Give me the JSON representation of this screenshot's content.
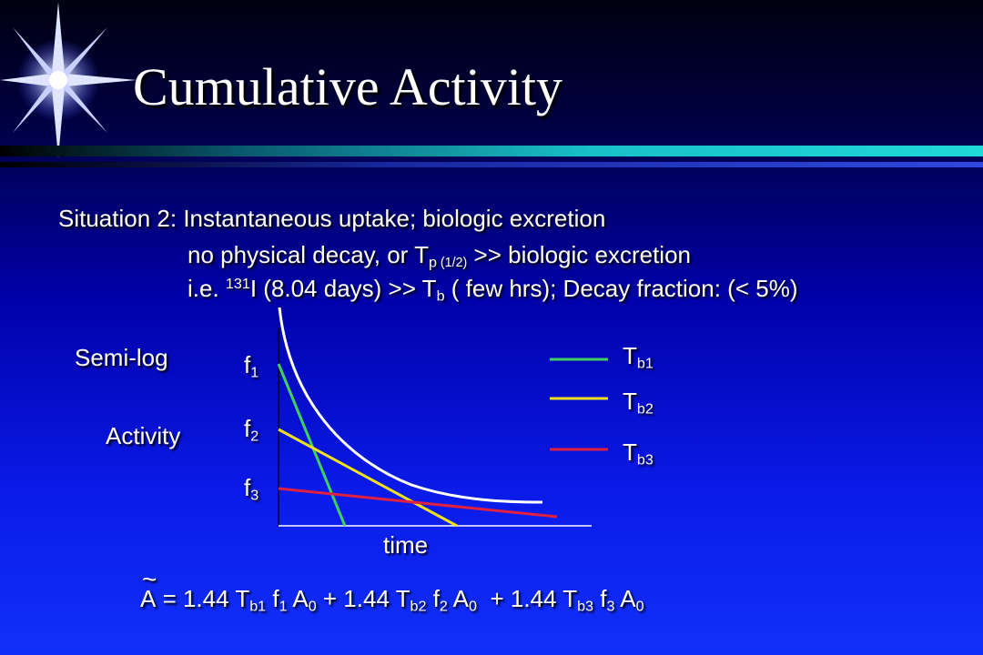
{
  "slide": {
    "title": "Cumulative Activity",
    "situation_line": "Situation 2: Instantaneous uptake; biologic excretion",
    "line2": {
      "a": "no physical decay, or T",
      "sub_p": "p",
      "sub_half": " (1/2)",
      "b": " >> biologic excretion"
    },
    "line3": {
      "a": "i.e. ",
      "sup_131": "131",
      "b": "I (8.04 days) >> T",
      "sub_b": "b",
      "c": " ( few hrs); Decay fraction: (< 5%)"
    }
  },
  "diagram": {
    "semilog_label": "Semi-log",
    "activity_label": "Activity",
    "x_label": "time",
    "f_labels": [
      {
        "base": "f",
        "sub": "1"
      },
      {
        "base": "f",
        "sub": "2"
      },
      {
        "base": "f",
        "sub": "3"
      }
    ],
    "legend": [
      {
        "base": "T",
        "sub": "b1",
        "color": "#40d060"
      },
      {
        "base": "T",
        "sub": "b2",
        "color": "#f0e020"
      },
      {
        "base": "T",
        "sub": "b3",
        "color": "#e02040"
      }
    ],
    "total_curve_color": "#ffffff"
  },
  "formula": {
    "tilde": "~",
    "lhs": "A",
    "eq": " = 1.44 T",
    "t1": "b1",
    "f1": " f",
    "f1s": "1",
    "a1": " A",
    "a1s": "0",
    "p2": " + 1.44 T",
    "t2": "b2",
    "f2": " f",
    "f2s": "2",
    "a2": " A",
    "a2s": "0",
    "p3": "  + 1.44 T",
    "t3": "b3",
    "f3": " f",
    "f3s": "3",
    "a3": " A",
    "a3s": "0"
  }
}
